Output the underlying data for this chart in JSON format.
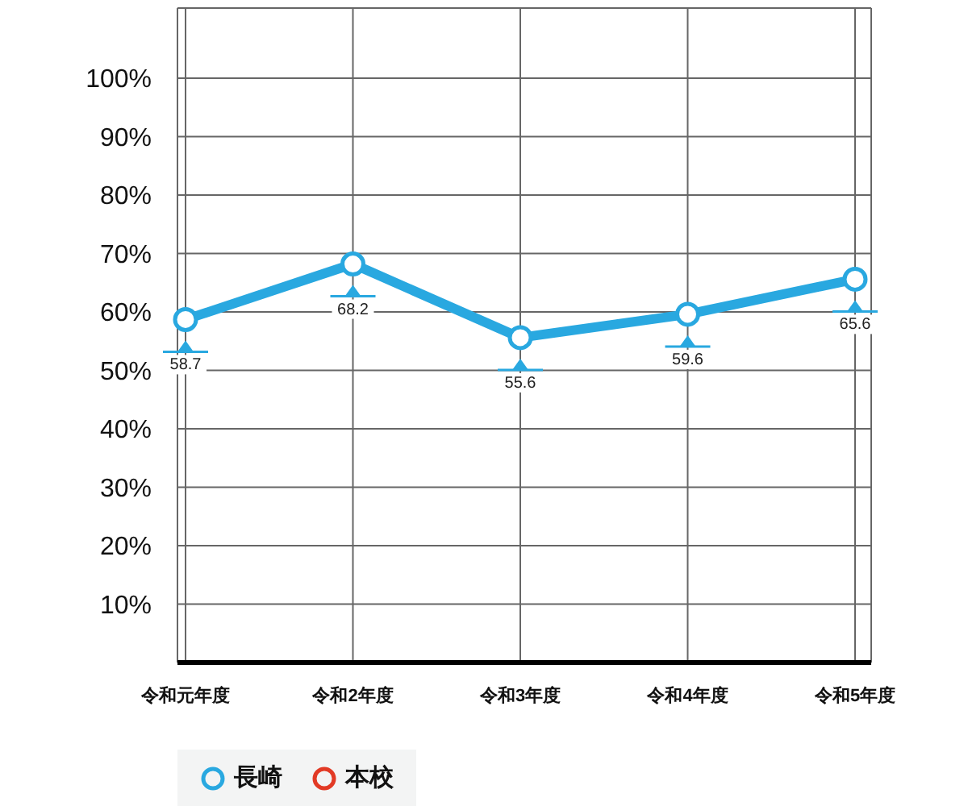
{
  "chart_data": {
    "type": "line",
    "categories": [
      "令和元年度",
      "令和2年度",
      "令和3年度",
      "令和4年度",
      "令和5年度"
    ],
    "series": [
      {
        "name": "長崎",
        "color": "#29a8e0",
        "values": [
          58.7,
          68.2,
          55.6,
          59.6,
          65.6
        ]
      },
      {
        "name": "本校",
        "color": "#e23a25",
        "values": [
          null,
          null,
          null,
          null,
          null
        ]
      }
    ],
    "ylim": [
      0,
      112
    ],
    "yticks": [
      {
        "value": 10,
        "label": "10%"
      },
      {
        "value": 20,
        "label": "20%"
      },
      {
        "value": 30,
        "label": "30%"
      },
      {
        "value": 40,
        "label": "40%"
      },
      {
        "value": 50,
        "label": "50%"
      },
      {
        "value": 60,
        "label": "60%"
      },
      {
        "value": 70,
        "label": "70%"
      },
      {
        "value": 80,
        "label": "80%"
      },
      {
        "value": 90,
        "label": "90%"
      },
      {
        "value": 100,
        "label": "100%"
      }
    ],
    "grid": true,
    "marker": "circle",
    "line_style": "solid",
    "data_labels": true,
    "legend": "bottom left"
  }
}
